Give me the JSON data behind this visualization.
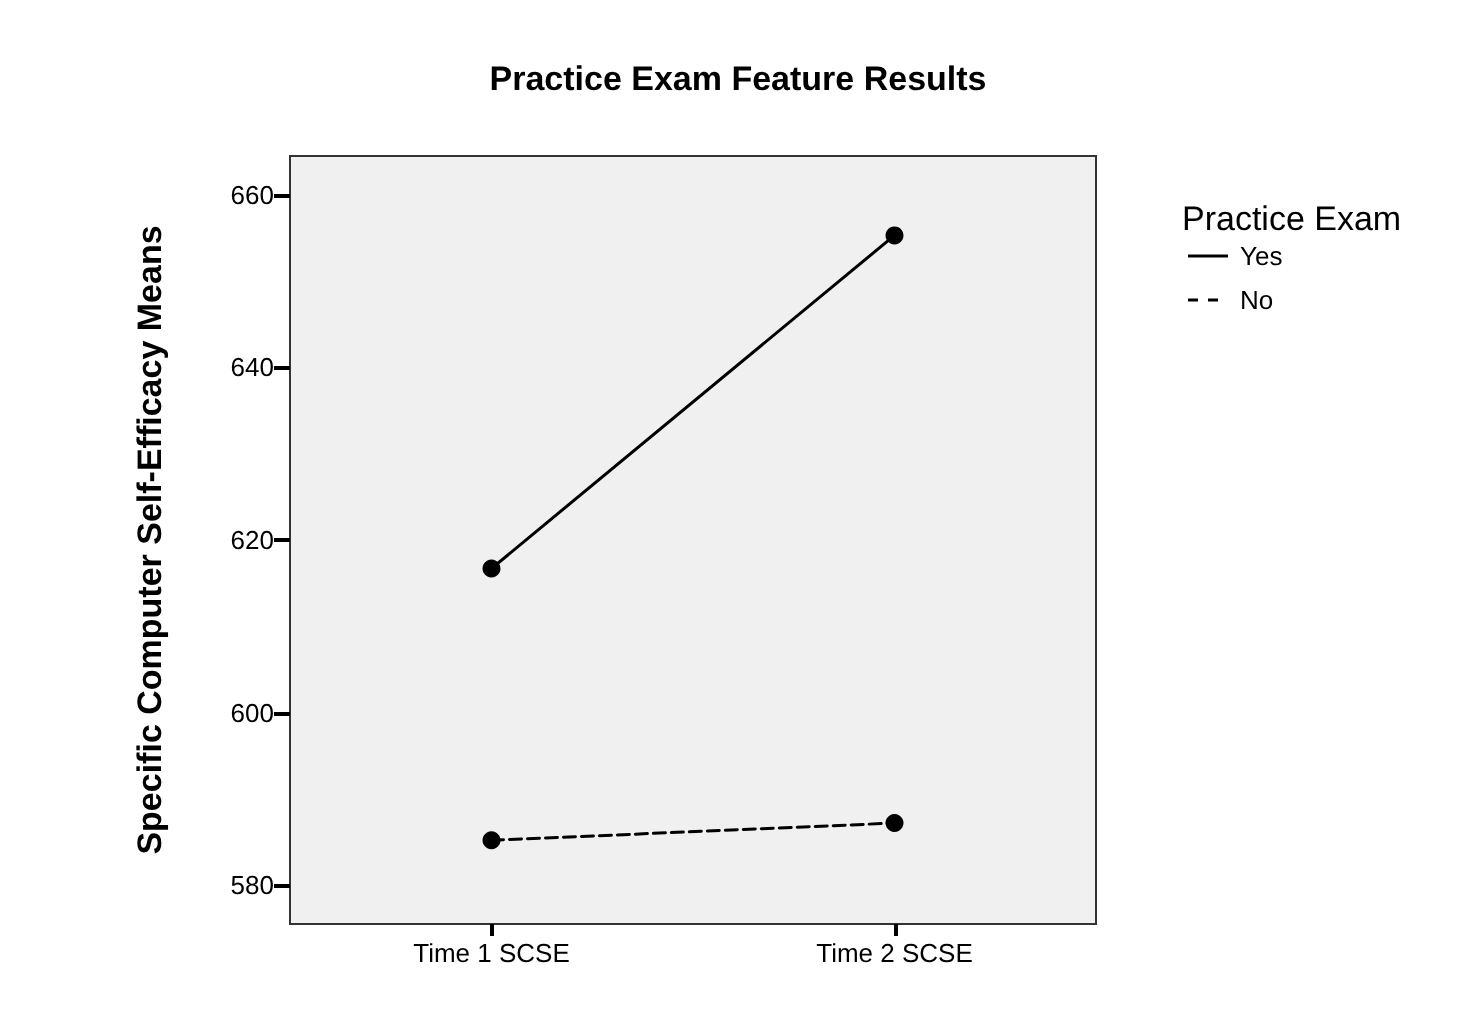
{
  "chart_data": {
    "type": "line",
    "title": "Practice Exam Feature Results",
    "ylabel": "Specific Computer Self-Efficacy Means",
    "legend_title": "Practice Exam",
    "categories": [
      "Time 1 SCSE",
      "Time 2 SCSE"
    ],
    "series": [
      {
        "name": "Yes",
        "color": "#000000",
        "line_style": "solid",
        "values": [
          616.7,
          655.3
        ]
      },
      {
        "name": "No",
        "color": "#000000",
        "line_style": "dashed",
        "values": [
          585.2,
          587.2
        ]
      }
    ],
    "ylim": [
      575.5,
      664.5
    ],
    "yticks": [
      580,
      600,
      620,
      640,
      660
    ],
    "marker": "circle",
    "legend": "right",
    "grid": false
  }
}
